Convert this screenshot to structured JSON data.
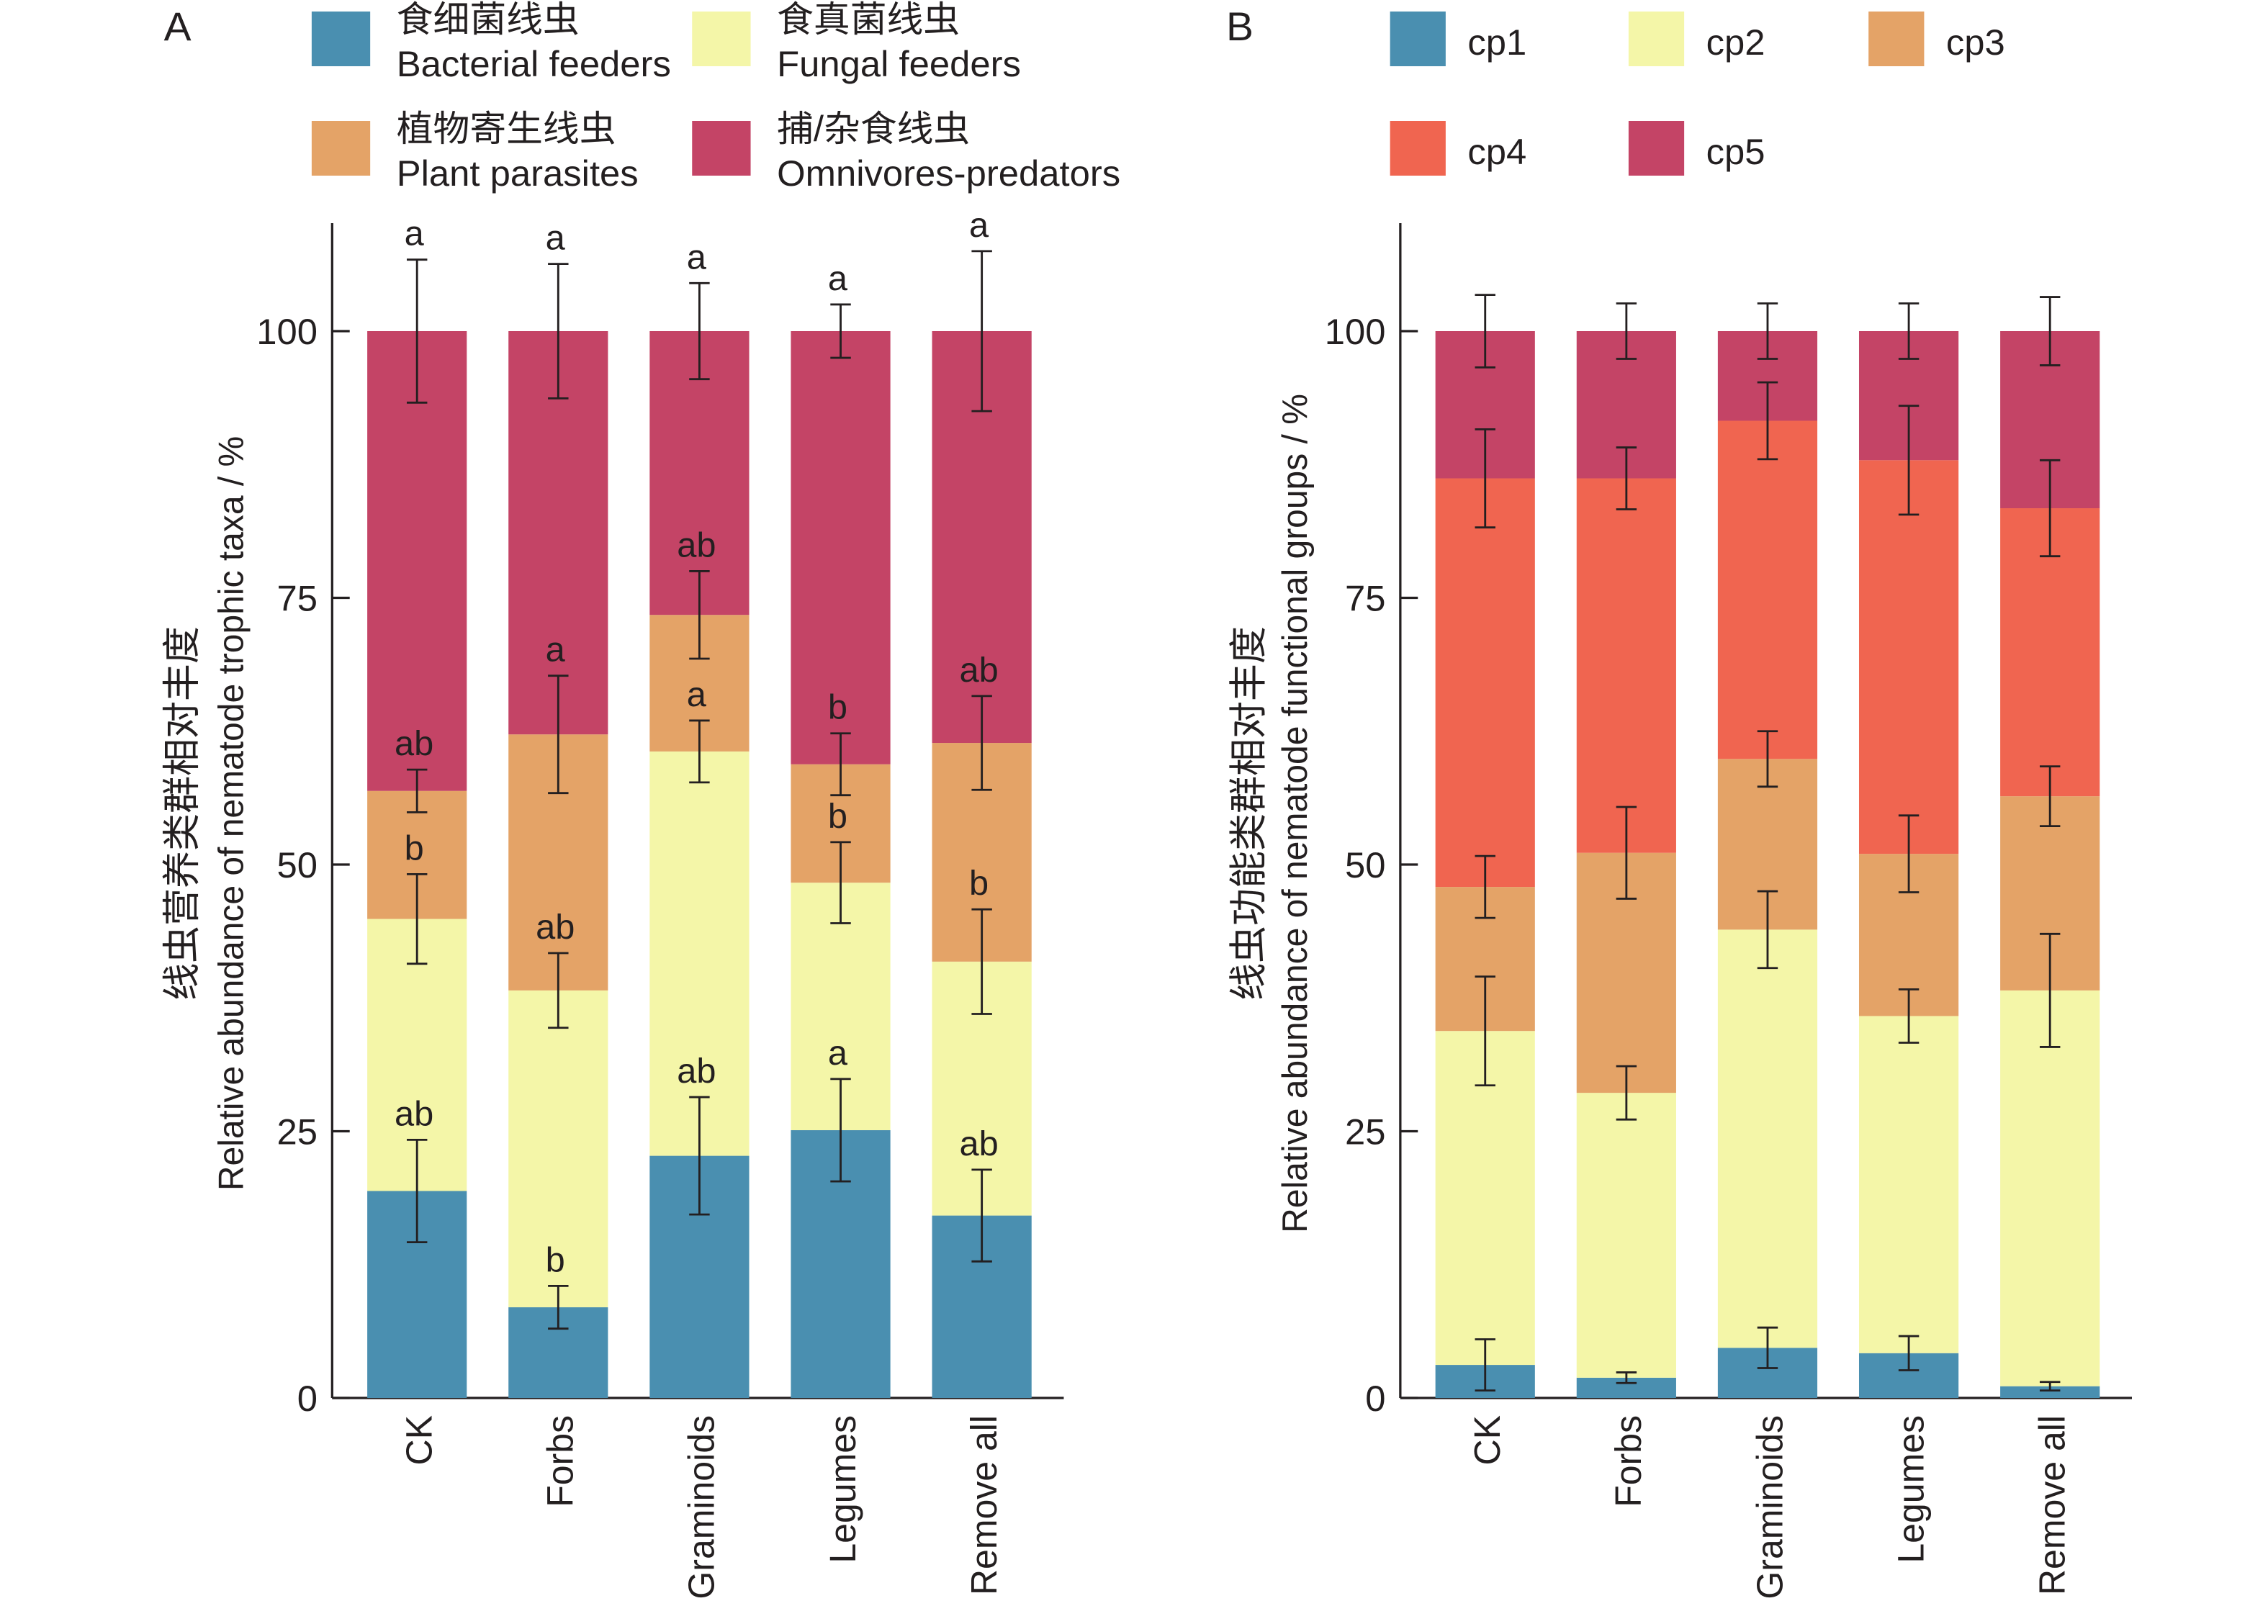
{
  "chart_data": [
    {
      "type": "bar",
      "stacked": true,
      "panel_label": "A",
      "title": "",
      "xlabel": "",
      "ylabel_cn": "线虫营养类群相对丰度",
      "ylabel": "Relative abundance of nematode trophic taxa / %",
      "ylim": [
        0,
        110
      ],
      "yticks": [
        "0",
        "25",
        "50",
        "75",
        "100"
      ],
      "ytick_values": [
        0,
        25,
        50,
        75,
        100
      ],
      "categories": [
        "CK",
        "Forbs",
        "Graminoids",
        "Legumes",
        "Remove all"
      ],
      "legend_position": "top",
      "series": [
        {
          "name": "Bacterial feeders",
          "name_cn": "食细菌线虫",
          "color": "#4a8fb0",
          "values": [
            19.4,
            8.5,
            22.7,
            25.1,
            17.1
          ],
          "errors": [
            4.8,
            2.0,
            5.5,
            4.8,
            4.3
          ],
          "letters": [
            "ab",
            "b",
            "ab",
            "a",
            "ab"
          ]
        },
        {
          "name": "Fungal feeders",
          "name_cn": "食真菌线虫",
          "color": "#f4f6a8",
          "values": [
            25.5,
            29.7,
            37.9,
            23.2,
            23.8
          ],
          "errors": [
            4.2,
            3.5,
            2.9,
            3.8,
            4.9
          ],
          "letters": [
            "b",
            "ab",
            "a",
            "b",
            "b"
          ]
        },
        {
          "name": "Plant parasites",
          "name_cn": "植物寄生线虫",
          "color": "#e4a367",
          "values": [
            12.0,
            24.0,
            12.8,
            11.1,
            20.5
          ],
          "errors": [
            2.0,
            5.5,
            4.1,
            2.9,
            4.4
          ],
          "letters": [
            "ab",
            "a",
            "ab",
            "b",
            "ab"
          ]
        },
        {
          "name": "Omnivores-predators",
          "name_cn": "捕/杂食线虫",
          "color": "#c44466",
          "values": [
            43.1,
            37.8,
            26.6,
            40.6,
            38.6
          ],
          "errors": [
            6.7,
            6.3,
            4.5,
            2.5,
            7.5
          ],
          "letters": [
            "a",
            "a",
            "a",
            "a",
            "a"
          ]
        }
      ]
    },
    {
      "type": "bar",
      "stacked": true,
      "panel_label": "B",
      "title": "",
      "xlabel": "",
      "ylabel_cn": "线虫功能类群相对丰度",
      "ylabel": "Relative abundance of nematode functional groups / %",
      "ylim": [
        0,
        110
      ],
      "yticks": [
        "0",
        "25",
        "50",
        "75",
        "100"
      ],
      "ytick_values": [
        0,
        25,
        50,
        75,
        100
      ],
      "categories": [
        "CK",
        "Forbs",
        "Graminoids",
        "Legumes",
        "Remove all"
      ],
      "legend_position": "top",
      "series": [
        {
          "name": "cp1",
          "color": "#4a8fb0",
          "values": [
            3.1,
            1.9,
            4.7,
            4.2,
            1.1
          ],
          "errors": [
            2.4,
            0.5,
            1.9,
            1.6,
            0.4
          ]
        },
        {
          "name": "cp2",
          "color": "#f4f6a8",
          "values": [
            31.3,
            26.7,
            39.2,
            31.6,
            37.1
          ],
          "errors": [
            5.1,
            2.5,
            3.6,
            2.5,
            5.3
          ]
        },
        {
          "name": "cp3",
          "color": "#e4a367",
          "values": [
            13.5,
            22.5,
            16.0,
            15.2,
            18.2
          ],
          "errors": [
            2.9,
            4.3,
            2.6,
            3.6,
            2.8
          ]
        },
        {
          "name": "cp4",
          "color": "#f06550",
          "values": [
            38.3,
            35.1,
            31.7,
            36.9,
            27.0
          ],
          "errors": [
            4.6,
            2.9,
            3.6,
            5.1,
            4.5
          ]
        },
        {
          "name": "cp5",
          "color": "#c44466",
          "values": [
            13.8,
            13.8,
            8.4,
            12.1,
            16.6
          ],
          "errors": [
            3.4,
            2.6,
            2.6,
            2.6,
            3.2
          ]
        }
      ]
    }
  ]
}
